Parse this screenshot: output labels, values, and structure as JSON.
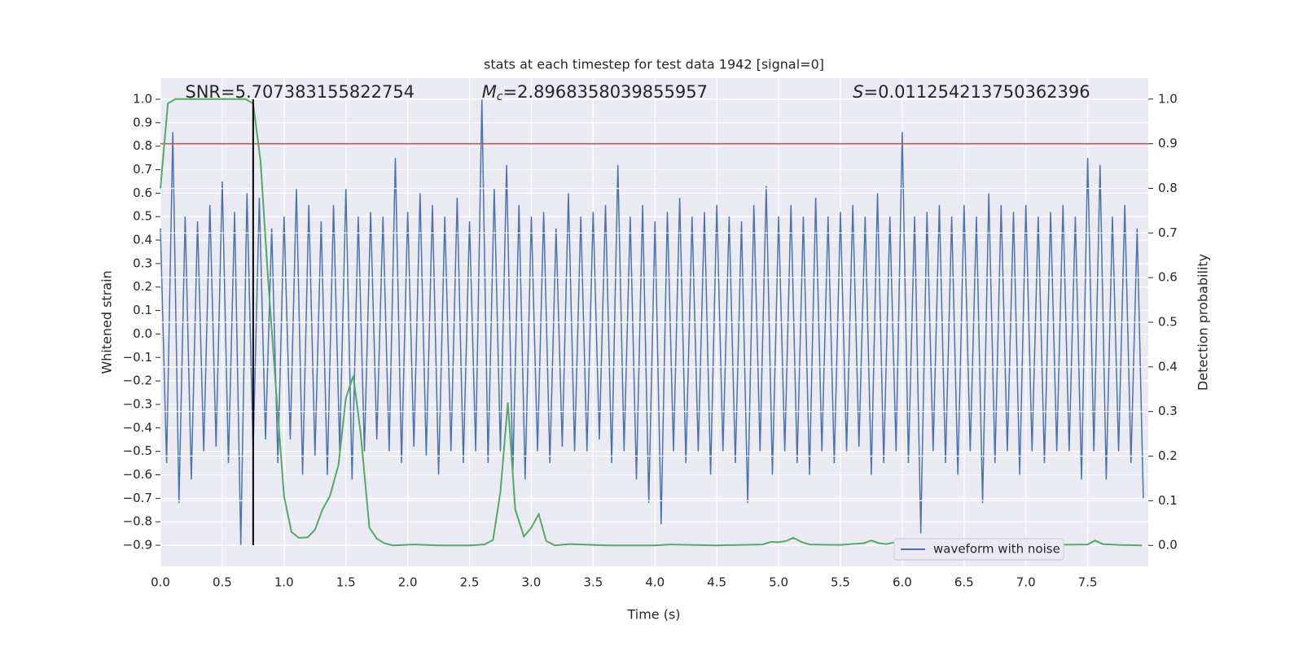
{
  "chart_data": {
    "type": "line",
    "title": "stats at each timestep for test data 1942 [signal=0]",
    "x_label": "Time (s)",
    "y_label": "Whitened strain",
    "y2_label": "Detection probability",
    "xlim": [
      0,
      7.99
    ],
    "ylim": [
      -0.99,
      1.09
    ],
    "y2lim": [
      -0.047,
      1.047
    ],
    "grid": true,
    "legend": "lower right",
    "background": "#eaeaf2",
    "xticks": [
      {
        "value": 0,
        "label": "0.0"
      },
      {
        "value": 0.5,
        "label": "0.5"
      },
      {
        "value": 1,
        "label": "1.0"
      },
      {
        "value": 1.5,
        "label": "1.5"
      },
      {
        "value": 2,
        "label": "2.0"
      },
      {
        "value": 2.5,
        "label": "2.5"
      },
      {
        "value": 3,
        "label": "3.0"
      },
      {
        "value": 3.5,
        "label": "3.5"
      },
      {
        "value": 4,
        "label": "4.0"
      },
      {
        "value": 4.5,
        "label": "4.5"
      },
      {
        "value": 5,
        "label": "5.0"
      },
      {
        "value": 5.5,
        "label": "5.5"
      },
      {
        "value": 6,
        "label": "6.0"
      },
      {
        "value": 6.5,
        "label": "6.5"
      },
      {
        "value": 7,
        "label": "7.0"
      },
      {
        "value": 7.5,
        "label": "7.5"
      }
    ],
    "yticks": [
      {
        "value": -0.9,
        "label": "−0.9"
      },
      {
        "value": -0.8,
        "label": "−0.8"
      },
      {
        "value": -0.7,
        "label": "−0.7"
      },
      {
        "value": -0.6,
        "label": "−0.6"
      },
      {
        "value": -0.5,
        "label": "−0.5"
      },
      {
        "value": -0.4,
        "label": "−0.4"
      },
      {
        "value": -0.3,
        "label": "−0.3"
      },
      {
        "value": -0.2,
        "label": "−0.2"
      },
      {
        "value": -0.1,
        "label": "−0.1"
      },
      {
        "value": 0,
        "label": "0.0"
      },
      {
        "value": 0.1,
        "label": "0.1"
      },
      {
        "value": 0.2,
        "label": "0.2"
      },
      {
        "value": 0.3,
        "label": "0.3"
      },
      {
        "value": 0.4,
        "label": "0.4"
      },
      {
        "value": 0.5,
        "label": "0.5"
      },
      {
        "value": 0.6,
        "label": "0.6"
      },
      {
        "value": 0.7,
        "label": "0.7"
      },
      {
        "value": 0.8,
        "label": "0.8"
      },
      {
        "value": 0.9,
        "label": "0.9"
      },
      {
        "value": 1,
        "label": "1.0"
      }
    ],
    "y2ticks": [
      {
        "value": 0,
        "label": "0.0"
      },
      {
        "value": 0.1,
        "label": "0.1"
      },
      {
        "value": 0.2,
        "label": "0.2"
      },
      {
        "value": 0.3,
        "label": "0.3"
      },
      {
        "value": 0.4,
        "label": "0.4"
      },
      {
        "value": 0.5,
        "label": "0.5"
      },
      {
        "value": 0.6,
        "label": "0.6"
      },
      {
        "value": 0.7,
        "label": "0.7"
      },
      {
        "value": 0.8,
        "label": "0.8"
      },
      {
        "value": 0.9,
        "label": "0.9"
      },
      {
        "value": 1,
        "label": "1.0"
      }
    ],
    "annotations": [
      {
        "text": "SNR=5.707383155822754",
        "x": 0.2
      },
      {
        "symbol": "M",
        "subscript": "c",
        "text": "=2.8968358039855957",
        "x": 2.6
      },
      {
        "symbol": "S",
        "text": "=0.011254213750362396",
        "x": 5.6
      }
    ],
    "vlines": [
      {
        "x": 0.75,
        "ymin": -0.9,
        "ymax": 1.0,
        "color": "#000000"
      }
    ],
    "hlines": [
      {
        "y": 0.9,
        "axis": "y2",
        "color": "#c44e52"
      }
    ],
    "series": [
      {
        "name": "waveform with noise",
        "color": "#4c72b0",
        "x": [
          0,
          0.05,
          0.1,
          0.15,
          0.2,
          0.25,
          0.3,
          0.35,
          0.4,
          0.45,
          0.5,
          0.55,
          0.6,
          0.65,
          0.7,
          0.75,
          0.8,
          0.85,
          0.9,
          0.95,
          1,
          1.05,
          1.1,
          1.15,
          1.2,
          1.25,
          1.3,
          1.35,
          1.4,
          1.45,
          1.5,
          1.55,
          1.6,
          1.65,
          1.7,
          1.75,
          1.8,
          1.85,
          1.9,
          1.95,
          2,
          2.05,
          2.1,
          2.15,
          2.2,
          2.25,
          2.3,
          2.35,
          2.4,
          2.45,
          2.5,
          2.55,
          2.6,
          2.65,
          2.7,
          2.75,
          2.8,
          2.85,
          2.9,
          2.95,
          3,
          3.05,
          3.1,
          3.15,
          3.2,
          3.25,
          3.3,
          3.35,
          3.4,
          3.45,
          3.5,
          3.55,
          3.6,
          3.65,
          3.7,
          3.75,
          3.8,
          3.85,
          3.9,
          3.95,
          4,
          4.05,
          4.1,
          4.15,
          4.2,
          4.25,
          4.3,
          4.35,
          4.4,
          4.45,
          4.5,
          4.55,
          4.6,
          4.65,
          4.7,
          4.75,
          4.8,
          4.85,
          4.9,
          4.95,
          5,
          5.05,
          5.1,
          5.15,
          5.2,
          5.25,
          5.3,
          5.35,
          5.4,
          5.45,
          5.5,
          5.55,
          5.6,
          5.65,
          5.7,
          5.75,
          5.8,
          5.85,
          5.9,
          5.95,
          6,
          6.05,
          6.1,
          6.15,
          6.2,
          6.25,
          6.3,
          6.35,
          6.4,
          6.45,
          6.5,
          6.55,
          6.6,
          6.65,
          6.7,
          6.75,
          6.8,
          6.85,
          6.9,
          6.95,
          7,
          7.05,
          7.1,
          7.15,
          7.2,
          7.25,
          7.3,
          7.35,
          7.4,
          7.45,
          7.5,
          7.55,
          7.6,
          7.65,
          7.7,
          7.75,
          7.8,
          7.85,
          7.9,
          7.95
        ],
        "values": [
          0.45,
          -0.55,
          0.86,
          -0.72,
          0.5,
          -0.62,
          0.48,
          -0.5,
          0.55,
          -0.48,
          0.65,
          -0.55,
          0.52,
          -0.9,
          0.6,
          -0.5,
          0.58,
          -0.45,
          0.45,
          -0.55,
          0.5,
          -0.45,
          0.62,
          -0.6,
          0.55,
          -0.52,
          0.48,
          -0.6,
          0.55,
          -0.5,
          0.62,
          -0.62,
          0.5,
          -0.5,
          0.52,
          -0.45,
          0.5,
          -0.5,
          0.75,
          -0.55,
          0.52,
          -0.48,
          0.6,
          -0.52,
          0.55,
          -0.6,
          0.5,
          -0.5,
          0.58,
          -0.55,
          0.48,
          -0.5,
          1.0,
          -0.55,
          0.62,
          -0.5,
          0.72,
          -0.6,
          0.55,
          -0.62,
          0.5,
          -0.5,
          0.52,
          -0.55,
          0.45,
          -0.48,
          0.6,
          -0.5,
          0.5,
          -0.5,
          0.52,
          -0.45,
          0.55,
          -0.55,
          0.72,
          -0.5,
          0.5,
          -0.62,
          0.55,
          -0.72,
          0.48,
          -0.81,
          0.52,
          -0.5,
          0.58,
          -0.55,
          0.5,
          -0.5,
          0.52,
          -0.6,
          0.55,
          -0.5,
          0.5,
          -0.55,
          0.48,
          -0.72,
          0.55,
          -0.5,
          0.63,
          -0.6,
          0.5,
          -0.5,
          0.55,
          -0.55,
          0.5,
          -0.6,
          0.58,
          -0.5,
          0.5,
          -0.55,
          0.52,
          -0.5,
          0.55,
          -0.48,
          0.5,
          -0.6,
          0.6,
          -0.55,
          0.5,
          -0.5,
          0.86,
          -0.55,
          0.5,
          -0.85,
          0.52,
          -0.5,
          0.55,
          -0.55,
          0.5,
          -0.6,
          0.55,
          -0.5,
          0.5,
          -0.72,
          0.6,
          -0.55,
          0.55,
          -0.5,
          0.52,
          -0.6,
          0.55,
          -0.5,
          0.5,
          -0.55,
          0.52,
          -0.5,
          0.55,
          -0.5,
          0.5,
          -0.62,
          0.75,
          -0.5,
          0.72,
          -0.62,
          0.5,
          -0.5,
          0.55,
          -0.55,
          0.45,
          -0.7
        ]
      },
      {
        "color": "#55a868",
        "axis": "y2",
        "x": [
          0,
          0.06,
          0.12,
          0.5,
          0.69,
          0.75,
          0.81,
          0.87,
          0.94,
          1,
          1.06,
          1.12,
          1.19,
          1.25,
          1.31,
          1.37,
          1.44,
          1.5,
          1.56,
          1.62,
          1.69,
          1.75,
          1.81,
          1.88,
          2.06,
          2.25,
          2.5,
          2.62,
          2.69,
          2.75,
          2.81,
          2.87,
          2.94,
          3,
          3.06,
          3.12,
          3.19,
          3.31,
          3.5,
          3.62,
          4,
          4.12,
          4.5,
          4.87,
          4.94,
          5,
          5.06,
          5.12,
          5.19,
          5.25,
          5.5,
          5.69,
          5.75,
          5.81,
          5.87,
          6,
          6.06,
          6.19,
          6.31,
          6.44,
          6.5,
          6.56,
          6.75,
          6.81,
          7,
          7.19,
          7.5,
          7.56,
          7.62,
          7.75,
          7.94
        ],
        "values": [
          0.8,
          0.99,
          1.0,
          1.0,
          1.0,
          0.99,
          0.86,
          0.6,
          0.33,
          0.11,
          0.03,
          0.017,
          0.018,
          0.035,
          0.08,
          0.11,
          0.18,
          0.33,
          0.38,
          0.25,
          0.04,
          0.015,
          0.005,
          0.0,
          0.002,
          0.0,
          0.0,
          0.002,
          0.012,
          0.12,
          0.32,
          0.08,
          0.02,
          0.04,
          0.07,
          0.01,
          0.0,
          0.003,
          0.001,
          0.0,
          0.0,
          0.002,
          0.0,
          0.002,
          0.008,
          0.007,
          0.01,
          0.017,
          0.007,
          0.002,
          0.001,
          0.005,
          0.011,
          0.005,
          0.003,
          0.01,
          0.004,
          0.002,
          0.006,
          0.004,
          0.011,
          0.004,
          0.005,
          0.001,
          0.001,
          0.001,
          0.002,
          0.011,
          0.003,
          0.001,
          0.0
        ]
      }
    ]
  }
}
